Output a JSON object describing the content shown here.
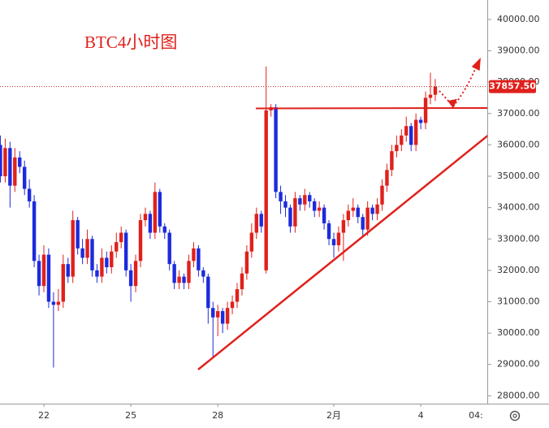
{
  "chart_data": {
    "type": "candlestick",
    "title": "BTC4小时图",
    "categories": [
      null,
      null,
      null,
      null,
      null,
      null,
      null,
      null,
      null,
      "22",
      null,
      null,
      null,
      null,
      null,
      null,
      null,
      null,
      null,
      null,
      null,
      null,
      null,
      null,
      null,
      null,
      null,
      "25",
      null,
      null,
      null,
      null,
      null,
      null,
      null,
      null,
      null,
      null,
      null,
      null,
      null,
      null,
      null,
      null,
      null,
      "28",
      null,
      null,
      null,
      null,
      null,
      null,
      null,
      null,
      null,
      null,
      null,
      null,
      null,
      null,
      null,
      null,
      null,
      null,
      null,
      null,
      null,
      null,
      null,
      "2月",
      null,
      null,
      null,
      null,
      null,
      null,
      null,
      null,
      null,
      null,
      null,
      null,
      null,
      null,
      null,
      null,
      null,
      "4",
      null,
      null,
      null
    ],
    "open": [
      36000,
      35000,
      35900,
      34700,
      35600,
      35300,
      34600,
      34200,
      32300,
      31500,
      32500,
      31000,
      30900,
      31000,
      32200,
      31800,
      33600,
      32700,
      32400,
      33000,
      32000,
      31800,
      32400,
      32100,
      32600,
      32900,
      33200,
      32000,
      31500,
      32300,
      33600,
      33800,
      33200,
      34500,
      33400,
      33200,
      32200,
      31600,
      31800,
      31600,
      32300,
      32700,
      32000,
      31800,
      30800,
      30500,
      30700,
      30300,
      30800,
      31000,
      31400,
      31900,
      32600,
      33200,
      33800,
      32000,
      37100,
      37200,
      34500,
      34200,
      34000,
      33400,
      34300,
      34100,
      34400,
      34200,
      33900,
      34000,
      33500,
      33000,
      32800,
      33200,
      33600,
      33900,
      34000,
      33700,
      33300,
      34000,
      33800,
      34100,
      34700,
      35200,
      35800,
      36000,
      36300,
      36600,
      36000,
      36800,
      36700,
      37500,
      37600
    ],
    "high": [
      36300,
      36200,
      36100,
      35900,
      35800,
      35500,
      34900,
      34400,
      32500,
      32800,
      32700,
      31300,
      31400,
      32500,
      32400,
      33900,
      33700,
      33000,
      33300,
      33100,
      32200,
      32700,
      32600,
      32800,
      33200,
      33400,
      33300,
      32200,
      32500,
      33800,
      34000,
      33900,
      34800,
      34600,
      33500,
      33300,
      32300,
      32000,
      31900,
      32500,
      32900,
      32800,
      32100,
      31900,
      31000,
      30900,
      30800,
      31000,
      31200,
      31600,
      32100,
      32800,
      33500,
      34000,
      33900,
      38500,
      37300,
      37300,
      34700,
      34400,
      34100,
      34500,
      34400,
      34600,
      34500,
      34300,
      34200,
      34100,
      33600,
      33200,
      33400,
      33800,
      34100,
      34300,
      34100,
      33800,
      34200,
      34100,
      34300,
      34900,
      35400,
      36000,
      36300,
      36500,
      36900,
      36700,
      37000,
      36900,
      37700,
      38300,
      38100
    ],
    "low": [
      34800,
      34800,
      34000,
      34500,
      35100,
      34400,
      34000,
      32100,
      31200,
      31300,
      30800,
      28900,
      30700,
      30800,
      31600,
      31600,
      32500,
      32200,
      32200,
      31800,
      31600,
      31600,
      31900,
      31900,
      32400,
      32700,
      31800,
      31000,
      31300,
      32100,
      33400,
      33000,
      33000,
      33200,
      33000,
      32000,
      31400,
      31400,
      31400,
      31400,
      32100,
      31800,
      31600,
      30300,
      29200,
      29900,
      30000,
      30100,
      30600,
      30800,
      31200,
      31700,
      32400,
      33000,
      33200,
      31900,
      36900,
      34300,
      33800,
      33700,
      33200,
      33200,
      33900,
      33900,
      34000,
      33700,
      33700,
      33300,
      32800,
      32400,
      32600,
      32300,
      33400,
      33700,
      33500,
      33100,
      33100,
      33600,
      33600,
      33900,
      34500,
      35000,
      35600,
      35800,
      36100,
      35800,
      35800,
      36500,
      36500,
      37300,
      37400
    ],
    "close": [
      35000,
      35900,
      34700,
      35600,
      35300,
      34600,
      34200,
      32300,
      31500,
      32500,
      31000,
      30900,
      31000,
      32200,
      31800,
      33600,
      32700,
      32400,
      33000,
      32000,
      31800,
      32400,
      32100,
      32600,
      32900,
      33200,
      32000,
      31500,
      32300,
      33600,
      33800,
      33200,
      34500,
      33400,
      33200,
      32200,
      31600,
      31800,
      31600,
      32300,
      32700,
      32000,
      31800,
      30800,
      30500,
      30700,
      30300,
      30800,
      31000,
      31400,
      31900,
      32600,
      33200,
      33800,
      33400,
      37100,
      37200,
      34500,
      34200,
      34000,
      33400,
      34300,
      34100,
      34400,
      34200,
      33900,
      34000,
      33500,
      33000,
      32800,
      33200,
      33600,
      33900,
      34000,
      33700,
      33300,
      34000,
      33800,
      34100,
      34700,
      35200,
      35800,
      36000,
      36300,
      36600,
      36000,
      36800,
      36700,
      37500,
      37600,
      37857.5
    ],
    "up_color": "#e0201b",
    "down_color": "#1c2bdc",
    "last_price": {
      "value": 37857.5,
      "label": "37857.50"
    },
    "time_label": "04:",
    "ylim": [
      27750,
      40620
    ],
    "yticks": [
      {
        "value": 28000,
        "label": "28000.00"
      },
      {
        "value": 29000,
        "label": "29000.00"
      },
      {
        "value": 30000,
        "label": "30000.00"
      },
      {
        "value": 31000,
        "label": "31000.00"
      },
      {
        "value": 32000,
        "label": "32000.00"
      },
      {
        "value": 33000,
        "label": "33000.00"
      },
      {
        "value": 34000,
        "label": "34000.00"
      },
      {
        "value": 35000,
        "label": "35000.00"
      },
      {
        "value": 36000,
        "label": "36000.00"
      },
      {
        "value": 37000,
        "label": "37000.00"
      },
      {
        "value": 38000,
        "label": "38000.00"
      },
      {
        "value": 39000,
        "label": "39000.00"
      },
      {
        "value": 40000,
        "label": "40000.00"
      }
    ],
    "grid": false
  }
}
